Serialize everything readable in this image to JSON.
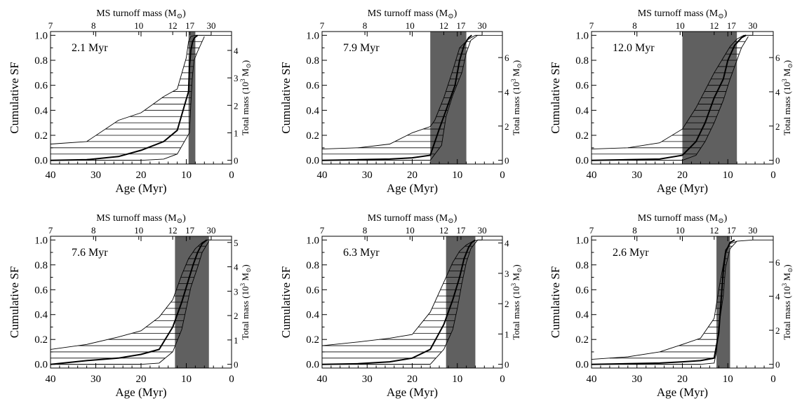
{
  "chart_data": [
    {
      "type": "line",
      "annotation": "2.1 Myr",
      "xlabel": "Age (Myr)",
      "ylabel": "Cumulative SF",
      "top_xlabel": "MS turnoff mass (M",
      "top_xlabel_suffix": ")",
      "right_ylabel": "Total mass (10",
      "right_ylabel_mid": " M",
      "right_ylabel_suffix": ")",
      "xlim": [
        40,
        0
      ],
      "ylim": [
        -0.03,
        1.03
      ],
      "x_ticks": [
        40,
        30,
        20,
        10,
        0
      ],
      "x_tick_labels": [
        "40",
        "30",
        "20",
        "10",
        "0"
      ],
      "y_ticks": [
        0.0,
        0.2,
        0.4,
        0.6,
        0.8,
        1.0
      ],
      "y_tick_labels": [
        "0.0",
        "0.2",
        "0.4",
        "0.6",
        "0.8",
        "1.0"
      ],
      "top_ticks": [
        {
          "age": 40,
          "label": "7"
        },
        {
          "age": 30.5,
          "label": "8"
        },
        {
          "age": 20.5,
          "label": "10"
        },
        {
          "age": 13.0,
          "label": "12"
        },
        {
          "age": 9.2,
          "label": "17"
        },
        {
          "age": 4.5,
          "label": "30"
        }
      ],
      "right_ticks": [
        {
          "value": 0,
          "label": "0"
        },
        {
          "value": 1,
          "label": "1"
        },
        {
          "value": 2,
          "label": "2"
        },
        {
          "value": 3,
          "label": "3"
        },
        {
          "value": 4,
          "label": "4"
        }
      ],
      "right_max": 4.55,
      "shaded_region": [
        9.5,
        8
      ],
      "median": {
        "x": [
          40,
          32,
          25,
          20,
          15,
          12,
          9.5,
          9.3,
          9.0,
          8.6,
          8.2,
          7.5
        ],
        "y": [
          0,
          0.005,
          0.03,
          0.08,
          0.15,
          0.24,
          0.55,
          0.75,
          0.88,
          0.95,
          0.98,
          1.0
        ]
      },
      "upper": {
        "x": [
          40,
          32,
          25,
          20,
          15,
          12,
          10,
          9.5,
          9.0,
          8.0,
          6.5,
          4.5
        ],
        "y": [
          0.13,
          0.15,
          0.32,
          0.38,
          0.51,
          0.57,
          0.82,
          0.95,
          0.99,
          1.0,
          1.0,
          1.0
        ]
      },
      "lower": {
        "x": [
          40,
          32,
          25,
          20,
          15,
          12,
          9.3,
          9.0,
          8.7,
          8.3,
          7.5,
          6.0
        ],
        "y": [
          0,
          0,
          0,
          0,
          0.01,
          0.05,
          0.22,
          0.45,
          0.65,
          0.8,
          0.87,
          0.99
        ]
      }
    },
    {
      "type": "line",
      "annotation": "7.9 Myr",
      "xlabel": "Age (Myr)",
      "ylabel": "Cumulative SF",
      "top_xlabel": "MS turnoff mass (M",
      "top_xlabel_suffix": ")",
      "right_ylabel": "Total mass (10",
      "right_ylabel_mid": " M",
      "right_ylabel_suffix": ")",
      "xlim": [
        40,
        0
      ],
      "ylim": [
        -0.03,
        1.03
      ],
      "x_ticks": [
        40,
        30,
        20,
        10,
        0
      ],
      "x_tick_labels": [
        "40",
        "30",
        "20",
        "10",
        "0"
      ],
      "y_ticks": [
        0.0,
        0.2,
        0.4,
        0.6,
        0.8,
        1.0
      ],
      "y_tick_labels": [
        "0.0",
        "0.2",
        "0.4",
        "0.6",
        "0.8",
        "1.0"
      ],
      "top_ticks": [
        {
          "age": 40,
          "label": "7"
        },
        {
          "age": 30.5,
          "label": "8"
        },
        {
          "age": 20.5,
          "label": "10"
        },
        {
          "age": 13.0,
          "label": "12"
        },
        {
          "age": 9.2,
          "label": "17"
        },
        {
          "age": 4.5,
          "label": "30"
        }
      ],
      "right_ticks": [
        {
          "value": 0,
          "label": "0"
        },
        {
          "value": 2,
          "label": "2"
        },
        {
          "value": 4,
          "label": "4"
        },
        {
          "value": 6,
          "label": "6"
        }
      ],
      "right_max": 7.3,
      "shaded_region": [
        16,
        8
      ],
      "median": {
        "x": [
          40,
          32,
          25,
          20,
          16,
          14,
          12,
          10.5,
          9.5,
          8.5,
          7.5,
          6.8
        ],
        "y": [
          0,
          0.005,
          0.01,
          0.02,
          0.04,
          0.25,
          0.45,
          0.6,
          0.8,
          0.92,
          0.98,
          1.0
        ]
      },
      "upper": {
        "x": [
          40,
          32,
          25,
          20,
          16,
          15,
          13,
          11,
          9.5,
          7.5,
          6.0,
          4.5
        ],
        "y": [
          0.09,
          0.1,
          0.13,
          0.22,
          0.27,
          0.32,
          0.5,
          0.72,
          0.9,
          0.97,
          1.0,
          1.0
        ]
      },
      "lower": {
        "x": [
          40,
          32,
          25,
          20,
          16,
          13.5,
          12.5,
          11,
          9,
          8,
          7,
          5.5
        ],
        "y": [
          0,
          0,
          0,
          0,
          0,
          0.12,
          0.35,
          0.52,
          0.7,
          0.86,
          0.96,
          1.0
        ]
      }
    },
    {
      "type": "line",
      "annotation": "12.0 Myr",
      "xlabel": "Age (Myr)",
      "ylabel": "Cumulative SF",
      "top_xlabel": "MS turnoff mass (M",
      "top_xlabel_suffix": ")",
      "right_ylabel": "Total mass (10",
      "right_ylabel_mid": " M",
      "right_ylabel_suffix": ")",
      "xlim": [
        40,
        0
      ],
      "ylim": [
        -0.03,
        1.03
      ],
      "x_ticks": [
        40,
        30,
        20,
        10,
        0
      ],
      "x_tick_labels": [
        "40",
        "30",
        "20",
        "10",
        "0"
      ],
      "y_ticks": [
        0.0,
        0.2,
        0.4,
        0.6,
        0.8,
        1.0
      ],
      "y_tick_labels": [
        "0.0",
        "0.2",
        "0.4",
        "0.6",
        "0.8",
        "1.0"
      ],
      "top_ticks": [
        {
          "age": 40,
          "label": "7"
        },
        {
          "age": 30.5,
          "label": "8"
        },
        {
          "age": 20.5,
          "label": "10"
        },
        {
          "age": 13.0,
          "label": "12"
        },
        {
          "age": 9.2,
          "label": "17"
        },
        {
          "age": 4.5,
          "label": "30"
        }
      ],
      "right_ticks": [
        {
          "value": 0,
          "label": "0"
        },
        {
          "value": 2,
          "label": "2"
        },
        {
          "value": 4,
          "label": "4"
        },
        {
          "value": 6,
          "label": "6"
        }
      ],
      "right_max": 7.3,
      "shaded_region": [
        20,
        8
      ],
      "median": {
        "x": [
          40,
          32,
          25,
          20,
          17,
          15,
          13,
          11,
          10,
          8.5,
          7,
          6
        ],
        "y": [
          0,
          0.005,
          0.01,
          0.04,
          0.15,
          0.3,
          0.5,
          0.65,
          0.8,
          0.92,
          0.98,
          1.0
        ]
      },
      "upper": {
        "x": [
          40,
          32,
          25,
          20,
          17,
          15,
          13,
          11,
          9.5,
          8,
          6.5,
          4.5
        ],
        "y": [
          0.09,
          0.1,
          0.14,
          0.25,
          0.42,
          0.56,
          0.7,
          0.82,
          0.91,
          0.97,
          1.0,
          1.0
        ]
      },
      "lower": {
        "x": [
          40,
          32,
          25,
          20,
          17,
          15,
          13,
          11,
          9.5,
          8,
          7,
          5.5
        ],
        "y": [
          0,
          0,
          0,
          0,
          0.04,
          0.15,
          0.3,
          0.48,
          0.65,
          0.8,
          0.9,
          0.99
        ]
      }
    },
    {
      "type": "line",
      "annotation": "7.6 Myr",
      "xlabel": "Age (Myr)",
      "ylabel": "Cumulative SF",
      "top_xlabel": "MS turnoff mass (M",
      "top_xlabel_suffix": ")",
      "right_ylabel": "Total mass (10",
      "right_ylabel_mid": " M",
      "right_ylabel_suffix": ")",
      "xlim": [
        40,
        0
      ],
      "ylim": [
        -0.03,
        1.03
      ],
      "x_ticks": [
        40,
        30,
        20,
        10,
        0
      ],
      "x_tick_labels": [
        "40",
        "30",
        "20",
        "10",
        "0"
      ],
      "y_ticks": [
        0.0,
        0.2,
        0.4,
        0.6,
        0.8,
        1.0
      ],
      "y_tick_labels": [
        "0.0",
        "0.2",
        "0.4",
        "0.6",
        "0.8",
        "1.0"
      ],
      "top_ticks": [
        {
          "age": 40,
          "label": "7"
        },
        {
          "age": 30.5,
          "label": "8"
        },
        {
          "age": 20.5,
          "label": "10"
        },
        {
          "age": 13.0,
          "label": "12"
        },
        {
          "age": 9.2,
          "label": "17"
        },
        {
          "age": 4.5,
          "label": "30"
        }
      ],
      "right_ticks": [
        {
          "value": 0,
          "label": "0"
        },
        {
          "value": 1,
          "label": "1"
        },
        {
          "value": 2,
          "label": "2"
        },
        {
          "value": 3,
          "label": "3"
        },
        {
          "value": 4,
          "label": "4"
        },
        {
          "value": 5,
          "label": "5"
        }
      ],
      "right_max": 5.1,
      "shaded_region": [
        12.5,
        5
      ],
      "median": {
        "x": [
          40,
          32,
          25,
          20,
          16,
          13,
          11,
          9.5,
          8.5,
          7.5,
          6.5,
          5.5
        ],
        "y": [
          0,
          0.03,
          0.05,
          0.08,
          0.12,
          0.3,
          0.5,
          0.68,
          0.8,
          0.9,
          0.97,
          1.0
        ]
      },
      "upper": {
        "x": [
          40,
          32,
          25,
          20,
          16,
          13,
          11,
          9.5,
          8,
          6.5,
          5.5,
          4.5
        ],
        "y": [
          0.12,
          0.16,
          0.22,
          0.27,
          0.38,
          0.52,
          0.72,
          0.85,
          0.93,
          0.98,
          1.0,
          1.0
        ]
      },
      "lower": {
        "x": [
          40,
          32,
          25,
          20,
          16,
          13,
          11,
          10,
          9,
          7.5,
          6.5,
          5.0
        ],
        "y": [
          0,
          0,
          0,
          0,
          0.01,
          0.1,
          0.28,
          0.45,
          0.62,
          0.78,
          0.9,
          0.99
        ]
      }
    },
    {
      "type": "line",
      "annotation": "6.3 Myr",
      "xlabel": "Age (Myr)",
      "ylabel": "Cumulative SF",
      "top_xlabel": "MS turnoff mass (M",
      "top_xlabel_suffix": ")",
      "right_ylabel": "Total mass (10",
      "right_ylabel_mid": " M",
      "right_ylabel_suffix": ")",
      "xlim": [
        40,
        0
      ],
      "ylim": [
        -0.03,
        1.03
      ],
      "x_ticks": [
        40,
        30,
        20,
        10,
        0
      ],
      "x_tick_labels": [
        "40",
        "30",
        "20",
        "10",
        "0"
      ],
      "y_ticks": [
        0.0,
        0.2,
        0.4,
        0.6,
        0.8,
        1.0
      ],
      "y_tick_labels": [
        "0.0",
        "0.2",
        "0.4",
        "0.6",
        "0.8",
        "1.0"
      ],
      "top_ticks": [
        {
          "age": 40,
          "label": "7"
        },
        {
          "age": 30.5,
          "label": "8"
        },
        {
          "age": 20.5,
          "label": "10"
        },
        {
          "age": 13.0,
          "label": "12"
        },
        {
          "age": 9.2,
          "label": "17"
        },
        {
          "age": 4.5,
          "label": "30"
        }
      ],
      "right_ticks": [
        {
          "value": 0,
          "label": "0"
        },
        {
          "value": 1,
          "label": "1"
        },
        {
          "value": 2,
          "label": "2"
        },
        {
          "value": 3,
          "label": "3"
        },
        {
          "value": 4,
          "label": "4"
        }
      ],
      "right_max": 4.1,
      "shaded_region": [
        12.5,
        6
      ],
      "median": {
        "x": [
          40,
          32,
          25,
          20,
          16,
          13,
          11,
          9.5,
          8.5,
          7.5,
          6.8,
          6.0
        ],
        "y": [
          0,
          0.005,
          0.02,
          0.05,
          0.12,
          0.32,
          0.52,
          0.7,
          0.85,
          0.94,
          0.98,
          1.0
        ]
      },
      "upper": {
        "x": [
          40,
          32,
          25,
          20,
          16,
          13,
          11,
          9.5,
          8.0,
          6.5,
          5.5,
          4.5
        ],
        "y": [
          0.15,
          0.18,
          0.21,
          0.24,
          0.42,
          0.66,
          0.82,
          0.91,
          0.96,
          0.99,
          1.0,
          1.0
        ]
      },
      "lower": {
        "x": [
          40,
          32,
          25,
          20,
          16,
          13,
          11,
          10,
          9,
          8,
          7,
          5.5
        ],
        "y": [
          0,
          0,
          0,
          0,
          0,
          0.12,
          0.28,
          0.45,
          0.65,
          0.82,
          0.93,
          1.0
        ]
      }
    },
    {
      "type": "line",
      "annotation": "2.6 Myr",
      "xlabel": "Age (Myr)",
      "ylabel": "Cumulative SF",
      "top_xlabel": "MS turnoff mass (M",
      "top_xlabel_suffix": ")",
      "right_ylabel": "Total mass (10",
      "right_ylabel_mid": " M",
      "right_ylabel_suffix": ")",
      "xlim": [
        40,
        0
      ],
      "ylim": [
        -0.03,
        1.03
      ],
      "x_ticks": [
        40,
        30,
        20,
        10,
        0
      ],
      "x_tick_labels": [
        "40",
        "30",
        "20",
        "10",
        "0"
      ],
      "y_ticks": [
        0.0,
        0.2,
        0.4,
        0.6,
        0.8,
        1.0
      ],
      "y_tick_labels": [
        "0.0",
        "0.2",
        "0.4",
        "0.6",
        "0.8",
        "1.0"
      ],
      "top_ticks": [
        {
          "age": 40,
          "label": "7"
        },
        {
          "age": 30.5,
          "label": "8"
        },
        {
          "age": 20.5,
          "label": "10"
        },
        {
          "age": 13.0,
          "label": "12"
        },
        {
          "age": 9.2,
          "label": "17"
        },
        {
          "age": 4.5,
          "label": "30"
        }
      ],
      "right_ticks": [
        {
          "value": 0,
          "label": "0"
        },
        {
          "value": 2,
          "label": "2"
        },
        {
          "value": 4,
          "label": "4"
        },
        {
          "value": 6,
          "label": "6"
        }
      ],
      "right_max": 7.3,
      "shaded_region": [
        12.5,
        9.5
      ],
      "median": {
        "x": [
          40,
          32,
          25,
          20,
          16,
          13,
          12,
          11.5,
          11,
          10.5,
          9.5,
          8.5
        ],
        "y": [
          0,
          0.005,
          0.01,
          0.02,
          0.03,
          0.05,
          0.25,
          0.5,
          0.75,
          0.9,
          0.98,
          1.0
        ]
      },
      "upper": {
        "x": [
          40,
          32,
          25,
          20,
          16,
          13,
          12,
          11,
          10.5,
          9.5,
          8,
          4.5
        ],
        "y": [
          0.04,
          0.06,
          0.1,
          0.16,
          0.21,
          0.37,
          0.6,
          0.8,
          0.92,
          0.97,
          0.99,
          1.0
        ]
      },
      "lower": {
        "x": [
          40,
          32,
          25,
          20,
          16,
          13,
          12.5,
          12,
          11,
          10.5,
          9.5,
          8
        ],
        "y": [
          0,
          0,
          0,
          0,
          0,
          0.01,
          0.1,
          0.3,
          0.55,
          0.78,
          0.93,
          0.99
        ]
      }
    }
  ]
}
